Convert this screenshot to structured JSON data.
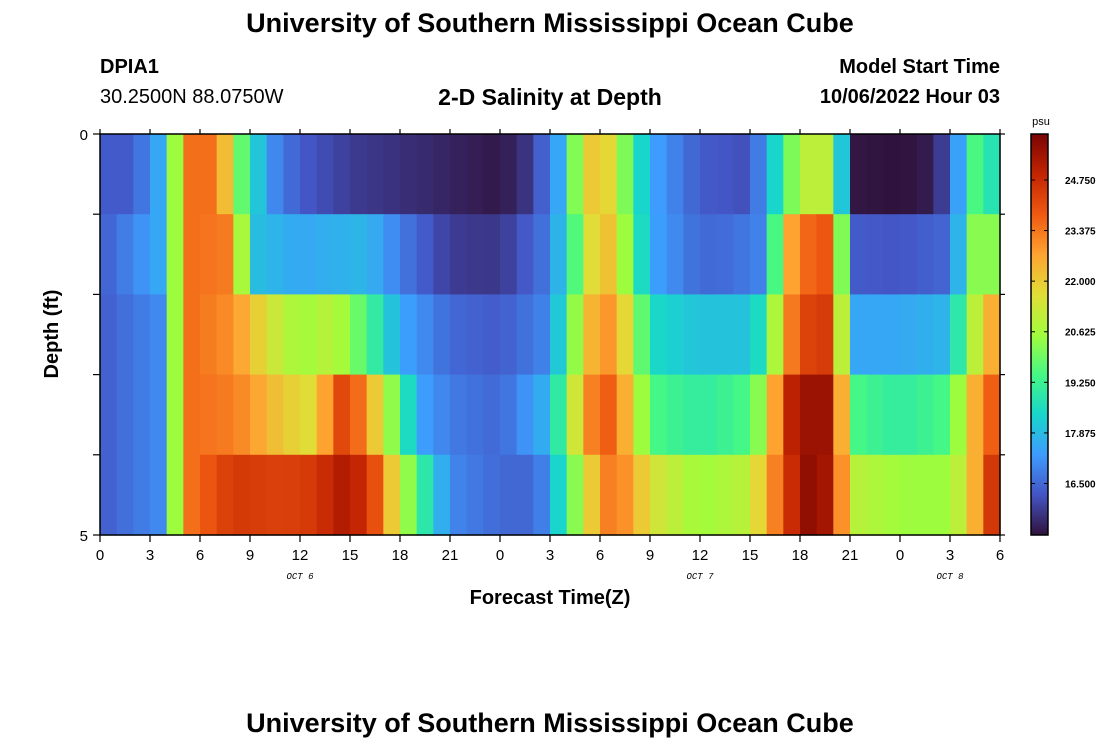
{
  "page": {
    "title": "University of Southern Mississippi Ocean Cube",
    "footer_title": "University of Southern Mississippi Ocean Cube",
    "station_id": "DPIA1",
    "station_coords": "30.2500N  88.0750W",
    "subtitle": "2-D Salinity at Depth",
    "model_start_label": "Model Start Time",
    "model_start_value": "10/06/2022 Hour 03"
  },
  "colors": {
    "scale": [
      "#30123b",
      "#4454c4",
      "#3e9bfe",
      "#18d6cb",
      "#46f884",
      "#a2fc3c",
      "#e1dd37",
      "#fea331",
      "#ef5911",
      "#c22402",
      "#7a0403"
    ]
  },
  "chart_data": {
    "type": "heatmap",
    "title": "2-D Salinity at Depth",
    "xlabel": "Forecast Time(Z)",
    "ylabel": "Depth (ft)",
    "x_tick_labels": [
      "0",
      "3",
      "6",
      "9",
      "12",
      "15",
      "18",
      "21",
      "0",
      "3",
      "6",
      "9",
      "12",
      "15",
      "18",
      "21",
      "0",
      "3",
      "6"
    ],
    "x_range_hours": [
      0,
      54
    ],
    "date_labels": [
      {
        "label": "OCT 6",
        "hour": 12
      },
      {
        "label": "OCT 7",
        "hour": 36
      },
      {
        "label": "OCT 8",
        "hour": 51
      }
    ],
    "y_tick_labels": [
      "0",
      "5"
    ],
    "y_range": [
      0,
      5
    ],
    "depth_layers": [
      0.5,
      1.5,
      2.5,
      3.5,
      4.5
    ],
    "colorbar": {
      "unit": "psu",
      "range": [
        15.1,
        26.0
      ],
      "ticks": [
        "24.750",
        "23.375",
        "22.000",
        "20.625",
        "19.250",
        "17.875",
        "16.500"
      ],
      "tick_values": [
        24.75,
        23.375,
        22.0,
        20.625,
        19.25,
        17.875,
        16.5
      ]
    },
    "layers": [
      {
        "depth": 0.5,
        "x_hours": [
          0,
          2,
          3.5,
          4.5,
          5.5,
          7,
          8.5,
          10,
          12,
          15,
          18,
          21,
          24,
          26,
          27.5,
          29,
          30,
          31,
          33,
          36,
          39,
          40,
          42,
          44,
          45,
          48,
          50,
          51,
          52,
          53,
          54
        ],
        "values": [
          16.3,
          16.3,
          17.5,
          20.5,
          23.5,
          23.5,
          19.8,
          17.2,
          16.3,
          15.8,
          15.6,
          15.4,
          15.2,
          15.8,
          17.5,
          21.5,
          22.5,
          21.0,
          17.5,
          16.3,
          16.1,
          17.5,
          21.0,
          21.0,
          15.2,
          15.1,
          15.3,
          16.3,
          18.5,
          20.5,
          17.0
        ]
      },
      {
        "depth": 1.5,
        "x_hours": [
          0,
          3.5,
          4.5,
          5.5,
          8,
          9,
          12,
          16,
          18,
          21,
          24,
          27,
          29,
          30,
          31,
          33,
          36,
          38,
          40,
          41,
          42,
          44,
          45,
          48,
          51,
          52,
          53,
          54
        ],
        "values": [
          16.3,
          17.5,
          20.5,
          23.5,
          23.3,
          18.0,
          17.5,
          17.8,
          16.8,
          15.8,
          15.7,
          16.8,
          20.5,
          22.8,
          21.5,
          17.5,
          16.5,
          16.6,
          17.0,
          22.0,
          23.5,
          24.0,
          16.3,
          16.2,
          16.5,
          19.0,
          21.5,
          19.0
        ]
      },
      {
        "depth": 2.5,
        "x_hours": [
          0,
          3.5,
          4.5,
          5.5,
          8,
          10,
          12,
          14,
          16,
          18,
          21,
          24,
          27,
          29,
          30,
          31,
          32,
          33,
          36,
          39,
          40,
          41,
          42,
          44,
          45,
          48,
          51,
          52,
          53,
          54
        ],
        "values": [
          16.3,
          17.0,
          20.5,
          23.5,
          23.0,
          21.5,
          20.5,
          21.0,
          19.5,
          17.5,
          16.5,
          16.3,
          17.0,
          21.5,
          23.3,
          22.5,
          21.0,
          18.5,
          18.0,
          18.0,
          19.0,
          22.5,
          24.2,
          24.5,
          17.5,
          17.5,
          17.8,
          20.0,
          22.0,
          23.0
        ]
      },
      {
        "depth": 3.5,
        "x_hours": [
          0,
          3.5,
          4.5,
          5.5,
          8,
          11,
          13,
          14,
          15,
          16.5,
          18,
          19,
          21,
          24,
          27,
          29,
          30,
          31,
          32,
          33,
          36,
          39,
          40,
          41,
          42,
          44,
          45,
          48,
          51,
          52,
          53,
          54
        ],
        "values": [
          16.3,
          17.0,
          20.5,
          23.5,
          23.3,
          22.0,
          21.5,
          24.0,
          24.3,
          22.0,
          19.5,
          17.5,
          16.8,
          16.5,
          17.8,
          22.5,
          24.0,
          23.5,
          21.5,
          19.5,
          19.0,
          19.5,
          21.0,
          24.5,
          25.5,
          25.5,
          19.5,
          19.0,
          19.5,
          21.5,
          23.5,
          24.0
        ]
      },
      {
        "depth": 4.5,
        "x_hours": [
          0,
          3.5,
          4.5,
          5.5,
          8,
          11,
          13,
          14,
          15,
          16.5,
          17.5,
          19,
          21,
          24,
          26,
          27,
          28,
          29,
          30,
          31,
          32,
          33,
          36,
          39,
          40,
          42,
          43,
          44,
          45,
          48,
          51,
          52,
          53,
          54
        ],
        "values": [
          16.3,
          17.0,
          20.5,
          23.5,
          24.5,
          24.3,
          24.5,
          25.0,
          25.3,
          24.0,
          22.0,
          19.5,
          17.0,
          16.5,
          16.5,
          17.2,
          19.5,
          21.0,
          23.0,
          23.5,
          22.5,
          21.5,
          20.5,
          21.0,
          22.5,
          25.5,
          25.8,
          25.0,
          21.0,
          20.5,
          20.5,
          21.5,
          23.5,
          25.5
        ]
      }
    ]
  }
}
